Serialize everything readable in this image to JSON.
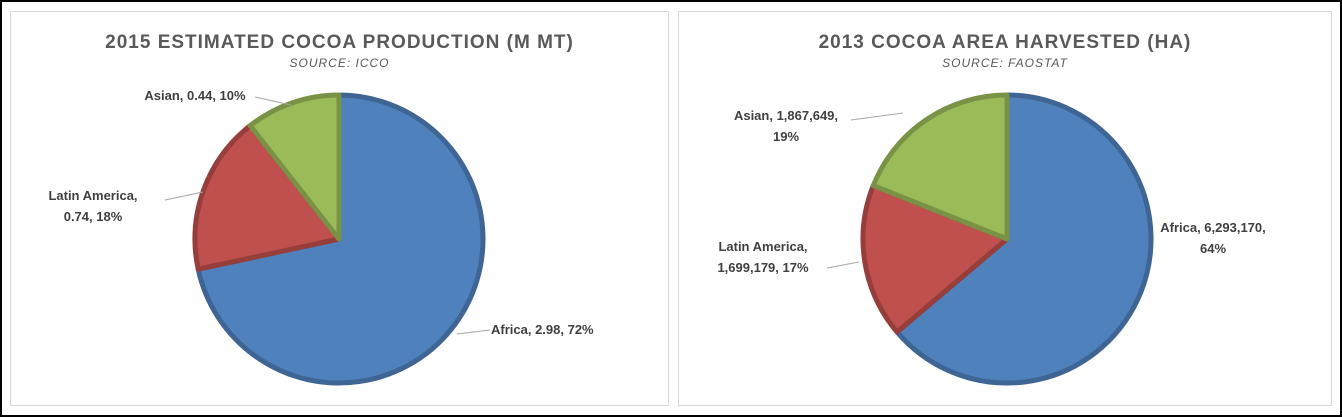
{
  "chart_data": [
    {
      "type": "pie",
      "title": "2015 ESTIMATED COCOA PRODUCTION (M MT)",
      "subtitle": "SOURCE: ICCO",
      "slices": [
        {
          "label": "Africa",
          "value": 2.98,
          "percent": 72,
          "value_text": "2.98",
          "color": "#4f81bd"
        },
        {
          "label": "Latin America",
          "value": 0.74,
          "percent": 18,
          "value_text": "0.74",
          "color": "#c0504d"
        },
        {
          "label": "Asian",
          "value": 0.44,
          "percent": 10,
          "value_text": "0.44",
          "color": "#9bbb59"
        }
      ],
      "data_labels": [
        [
          "Africa, 2.98, 72%"
        ],
        [
          "Latin America,",
          "0.74, 18%"
        ],
        [
          "Asian, 0.44, 10%"
        ]
      ],
      "legend": "none"
    },
    {
      "type": "pie",
      "title": "2013 COCOA AREA HARVESTED (HA)",
      "subtitle": "SOURCE: FAOSTAT",
      "slices": [
        {
          "label": "Africa",
          "value": 6293170,
          "percent": 64,
          "value_text": "6,293,170",
          "color": "#4f81bd"
        },
        {
          "label": "Latin America",
          "value": 1699179,
          "percent": 17,
          "value_text": "1,699,179",
          "color": "#c0504d"
        },
        {
          "label": "Asian",
          "value": 1867649,
          "percent": 19,
          "value_text": "1,867,649",
          "color": "#9bbb59"
        }
      ],
      "data_labels": [
        [
          "Africa, 6,293,170,",
          "64%"
        ],
        [
          "Latin America,",
          "1,699,179, 17%"
        ],
        [
          "Asian, 1,867,649,",
          "19%"
        ]
      ],
      "legend": "none"
    }
  ]
}
